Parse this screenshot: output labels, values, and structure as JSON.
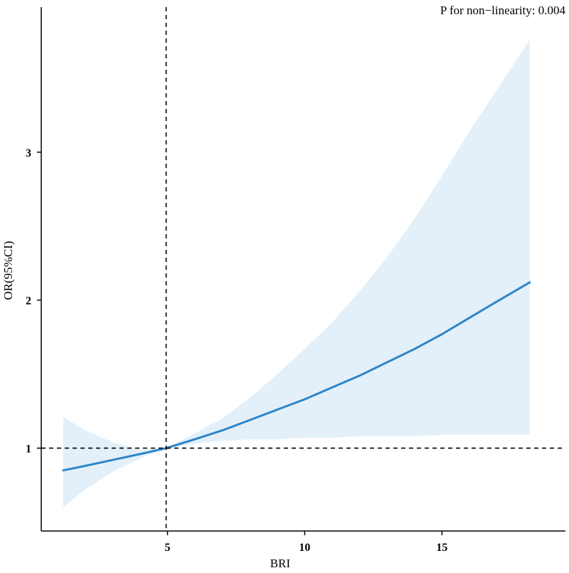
{
  "chart_data": {
    "type": "line",
    "title": "",
    "xlabel": "BRI",
    "ylabel": "OR(95%CI)",
    "xlim": [
      0.4,
      19.5
    ],
    "ylim": [
      0.44,
      3.98
    ],
    "x_ticks": [
      5,
      10,
      15
    ],
    "y_ticks": [
      1,
      2,
      3
    ],
    "x_tick_labels": [
      "5",
      "10",
      "15"
    ],
    "y_tick_labels": [
      "1",
      "2",
      "3"
    ],
    "grid": false,
    "legend": "none",
    "annotation": "P for non−linearity:  0.004",
    "reference_lines": {
      "x": 4.95,
      "y": 1
    },
    "colors": {
      "line": "#2e86c8",
      "band": "#e3f0f9",
      "axis": "#000000",
      "reference": "#000000"
    },
    "series": [
      {
        "x": [
          1.2,
          2.0,
          3.0,
          4.0,
          4.95,
          6.0,
          7.0,
          8.0,
          9.0,
          10.0,
          11.0,
          12.0,
          13.0,
          14.0,
          15.0,
          16.0,
          17.0,
          18.2
        ],
        "y": [
          0.85,
          0.88,
          0.92,
          0.96,
          1.0,
          1.06,
          1.12,
          1.19,
          1.26,
          1.33,
          1.41,
          1.49,
          1.58,
          1.67,
          1.77,
          1.88,
          1.99,
          2.12
        ],
        "lower": [
          0.6,
          0.72,
          0.84,
          0.93,
          1.0,
          1.03,
          1.05,
          1.06,
          1.06,
          1.07,
          1.07,
          1.08,
          1.08,
          1.08,
          1.09,
          1.09,
          1.09,
          1.09
        ],
        "upper": [
          1.21,
          1.12,
          1.04,
          0.99,
          1.0,
          1.1,
          1.2,
          1.34,
          1.5,
          1.67,
          1.85,
          2.06,
          2.29,
          2.55,
          2.84,
          3.14,
          3.42,
          3.76
        ]
      }
    ]
  }
}
